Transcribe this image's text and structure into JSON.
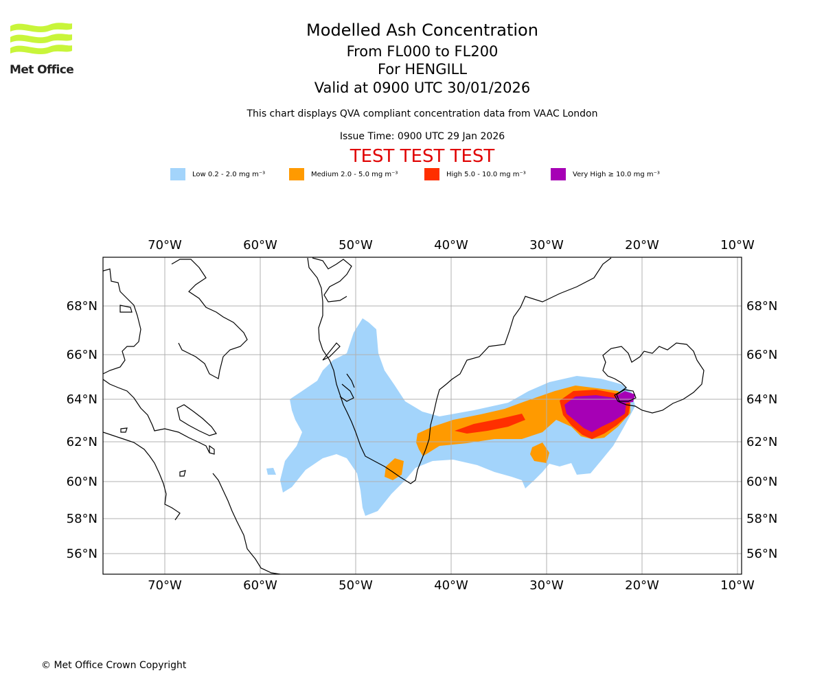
{
  "brand": {
    "name": "Met Office",
    "logo_color": "#c8f53a"
  },
  "header": {
    "title": "Modelled Ash Concentration",
    "level_range": "From FL000 to FL200",
    "volcano": "For HENGILL",
    "valid": "Valid at 0900 UTC 30/01/2026",
    "subtitle": "This chart displays QVA compliant concentration data from VAAC London",
    "issue": "Issue Time: 0900 UTC 29 Jan 2026",
    "test_banner": "TEST TEST TEST"
  },
  "legend": [
    {
      "label": "Low 0.2 - 2.0 mg m⁻³",
      "color": "#a3d4fb"
    },
    {
      "label": "Medium 2.0 - 5.0 mg m⁻³",
      "color": "#ff9a00"
    },
    {
      "label": "High 5.0 - 10.0 mg m⁻³",
      "color": "#ff2f00"
    },
    {
      "label": "Very High ≥ 10.0 mg m⁻³",
      "color": "#a600b5"
    }
  ],
  "map": {
    "lon_ticks": [
      "70°W",
      "60°W",
      "50°W",
      "40°W",
      "30°W",
      "20°W",
      "10°W"
    ],
    "lat_ticks": [
      "68°N",
      "66°N",
      "64°N",
      "62°N",
      "60°N",
      "58°N",
      "56°N"
    ]
  },
  "footer": {
    "copyright": "© Met Office Crown Copyright"
  }
}
